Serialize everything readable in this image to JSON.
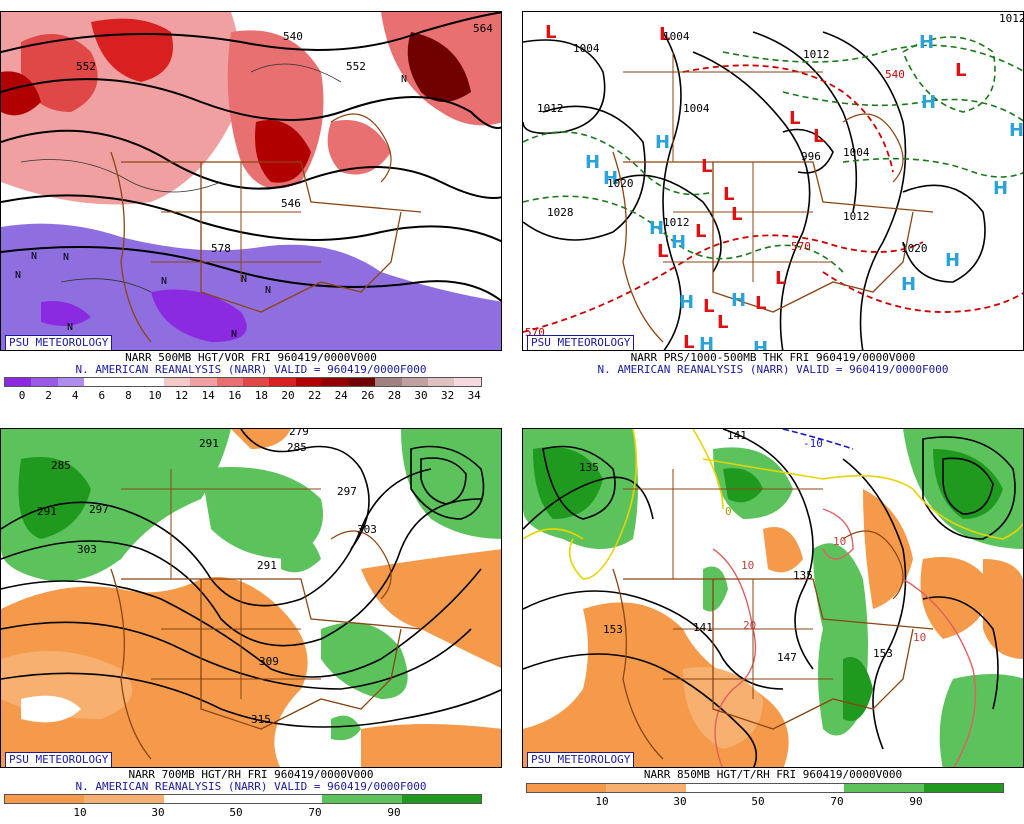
{
  "panels": {
    "p1": {
      "badge": "PSU METEOROLOGY",
      "line1": "NARR 500MB HGT/VOR FRI 960419/0000V000",
      "line2": "N. AMERICAN REANALYSIS (NARR) VALID = 960419/0000F000",
      "scale_labels": [
        "0",
        "2",
        "4",
        "6",
        "8",
        "10",
        "12",
        "14",
        "16",
        "18",
        "20",
        "22",
        "24",
        "26",
        "28",
        "30",
        "32",
        "34"
      ],
      "contour_labels": [
        "540",
        "552",
        "552",
        "564",
        "578",
        "546"
      ]
    },
    "p2": {
      "badge": "PSU METEOROLOGY",
      "line1": "NARR PRS/1000-500MB THK FRI 960419/0000V000",
      "line2": "N. AMERICAN REANALYSIS (NARR) VALID = 960419/0000F000",
      "contour_labels": [
        "1004",
        "1004",
        "1012",
        "1004",
        "1020",
        "1028",
        "1012",
        "1012",
        "1012",
        "996",
        "1004",
        "1012",
        "1020",
        "540",
        "570",
        "570"
      ]
    },
    "p3": {
      "badge": "PSU METEOROLOGY",
      "line1": "NARR 700MB HGT/RH FRI 960419/0000V000",
      "line2": "N. AMERICAN REANALYSIS (NARR) VALID = 960419/0000F000",
      "scale_labels": [
        "10",
        "30",
        "50",
        "70",
        "90"
      ],
      "contour_labels": [
        "285",
        "291",
        "297",
        "303",
        "291",
        "285",
        "279",
        "297",
        "303",
        "291",
        "309",
        "315"
      ]
    },
    "p4": {
      "badge": "PSU METEOROLOGY",
      "line1": "NARR 850MB HGT/T/RH FRI 960419/0000V000",
      "scale_labels": [
        "10",
        "30",
        "50",
        "70",
        "90"
      ],
      "contour_labels": [
        "135",
        "135",
        "141",
        "147",
        "153",
        "153",
        "141",
        "-10",
        "10",
        "10",
        "20",
        "10",
        "0"
      ]
    }
  },
  "colors": {
    "vort_scale": [
      "#8a2be2",
      "#9a5ae6",
      "#b08ced",
      "#ffffff",
      "#ffffff",
      "#ffffff",
      "#f6c9c9",
      "#f0a0a0",
      "#e87070",
      "#e04848",
      "#d82020",
      "#b00000",
      "#900000",
      "#700000",
      "#a08080",
      "#c0a0a0",
      "#e0c0c0",
      "#f8d8e0"
    ],
    "rh_scale": [
      "#f59a4a",
      "#f8b070",
      "#ffffff",
      "#ffffff",
      "#5cc25c",
      "#1f9a1f"
    ]
  }
}
